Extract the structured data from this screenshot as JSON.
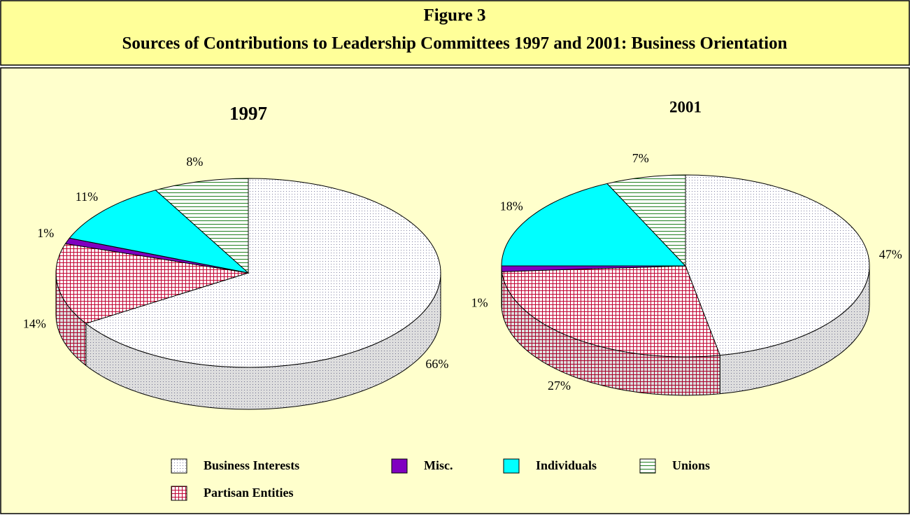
{
  "header": {
    "title": "Figure 3",
    "subtitle": "Sources of Contributions to Leadership Committees 1997 and 2001:  Business Orientation"
  },
  "chart_data": [
    {
      "type": "pie",
      "title": "1997",
      "categories": [
        "Business Interests",
        "Partisan Entities",
        "Misc.",
        "Individuals",
        "Unions"
      ],
      "values": [
        66,
        14,
        1,
        11,
        8
      ],
      "value_labels": [
        "66%",
        "14%",
        "1%",
        "11%",
        "8%"
      ],
      "colors": [
        "#8080a0",
        "#c00030",
        "#8000c0",
        "#00ffff",
        "#208020"
      ],
      "patterns": [
        "dots",
        "grid",
        "solid",
        "solid",
        "hlines"
      ]
    },
    {
      "type": "pie",
      "title": "2001",
      "categories": [
        "Business Interests",
        "Partisan Entities",
        "Misc.",
        "Individuals",
        "Unions"
      ],
      "values": [
        47,
        27,
        1,
        18,
        7
      ],
      "value_labels": [
        "47%",
        "27%",
        "1%",
        "18%",
        "7%"
      ],
      "colors": [
        "#8080a0",
        "#c00030",
        "#8000c0",
        "#00ffff",
        "#208020"
      ],
      "patterns": [
        "dots",
        "grid",
        "solid",
        "solid",
        "hlines"
      ]
    }
  ]
}
